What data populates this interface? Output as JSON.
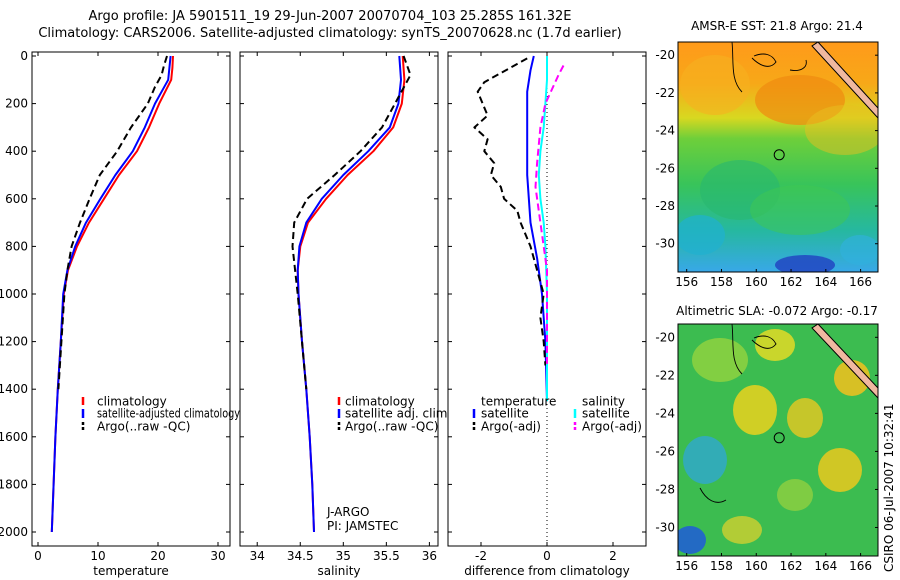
{
  "header": {
    "line1": "Argo profile: JA 5901511_19 29-Jun-2007 20070704_103 25.285S 161.32E",
    "line2": "Climatology: CARS2006. Satellite-adjusted climatology: synTS_20070628.nc (1.7d earlier)"
  },
  "footer_stamp": "CSIRO 06-Jul-2007 10:32:41",
  "colors": {
    "climatology": "#ff0000",
    "satellite": "#0000ff",
    "argo": "#000000",
    "satellite_diff_salinity": "#00ffff",
    "argo_diff_salinity": "#ff00ff",
    "land": "#f0b8a0"
  },
  "chart_data": [
    {
      "id": "temperature",
      "type": "line",
      "xlabel": "temperature",
      "xlim": [
        -1,
        32
      ],
      "xticks": [
        0,
        10,
        20,
        30
      ],
      "ylim": [
        2050,
        0
      ],
      "yticks": [
        0,
        200,
        400,
        600,
        800,
        1000,
        1200,
        1400,
        1600,
        1800,
        2000
      ],
      "legend": [
        "climatology",
        "satellite-adjusted climatology",
        "Argo(..raw -QC)"
      ],
      "series": [
        {
          "name": "climatology",
          "color": "#ff0000",
          "dash": "",
          "points": [
            [
              22.5,
              0
            ],
            [
              22.4,
              50
            ],
            [
              22.2,
              100
            ],
            [
              21.2,
              150
            ],
            [
              20.2,
              200
            ],
            [
              18.5,
              300
            ],
            [
              16.5,
              400
            ],
            [
              13.5,
              500
            ],
            [
              11.0,
              600
            ],
            [
              8.5,
              700
            ],
            [
              6.5,
              800
            ],
            [
              5.0,
              900
            ],
            [
              4.3,
              1000
            ],
            [
              3.8,
              1200
            ],
            [
              3.3,
              1400
            ],
            [
              2.9,
              1600
            ],
            [
              2.6,
              1800
            ],
            [
              2.3,
              2000
            ]
          ]
        },
        {
          "name": "satellite-adjusted climatology",
          "color": "#0000ff",
          "dash": "",
          "points": [
            [
              22.1,
              0
            ],
            [
              21.9,
              50
            ],
            [
              21.7,
              100
            ],
            [
              20.6,
              150
            ],
            [
              19.5,
              200
            ],
            [
              17.8,
              300
            ],
            [
              15.8,
              400
            ],
            [
              12.9,
              500
            ],
            [
              10.4,
              600
            ],
            [
              8.0,
              700
            ],
            [
              6.2,
              800
            ],
            [
              4.9,
              900
            ],
            [
              4.2,
              1000
            ],
            [
              3.8,
              1200
            ],
            [
              3.3,
              1400
            ],
            [
              2.9,
              1600
            ],
            [
              2.6,
              1800
            ],
            [
              2.3,
              2000
            ]
          ]
        },
        {
          "name": "Argo(..raw -QC)",
          "color": "#000000",
          "dash": "7,4",
          "points": [
            [
              21.5,
              0
            ],
            [
              21.0,
              40
            ],
            [
              20.6,
              80
            ],
            [
              19.5,
              130
            ],
            [
              18.3,
              200
            ],
            [
              15.5,
              300
            ],
            [
              13.2,
              400
            ],
            [
              10.3,
              500
            ],
            [
              8.6,
              600
            ],
            [
              7.0,
              700
            ],
            [
              5.6,
              800
            ],
            [
              4.9,
              900
            ],
            [
              4.4,
              1000
            ],
            [
              3.9,
              1200
            ],
            [
              3.4,
              1400
            ]
          ]
        }
      ]
    },
    {
      "id": "salinity",
      "type": "line",
      "xlabel": "salinity",
      "xlim": [
        33.8,
        36.1
      ],
      "xticks": [
        34,
        34.5,
        35,
        35.5,
        36
      ],
      "ylim": [
        2050,
        0
      ],
      "yticks": [
        0,
        200,
        400,
        600,
        800,
        1000,
        1200,
        1400,
        1600,
        1800,
        2000
      ],
      "legend": [
        "climatology",
        "satellite adj. clim.",
        "Argo(..raw -QC)"
      ],
      "annotation": [
        "J-ARGO",
        "PI: JAMSTEC"
      ],
      "series": [
        {
          "name": "climatology",
          "color": "#ff0000",
          "dash": "",
          "points": [
            [
              35.69,
              0
            ],
            [
              35.71,
              100
            ],
            [
              35.68,
              200
            ],
            [
              35.58,
              300
            ],
            [
              35.35,
              400
            ],
            [
              35.05,
              500
            ],
            [
              34.8,
              600
            ],
            [
              34.59,
              700
            ],
            [
              34.5,
              800
            ],
            [
              34.47,
              900
            ],
            [
              34.48,
              1000
            ],
            [
              34.52,
              1200
            ],
            [
              34.57,
              1400
            ],
            [
              34.61,
              1600
            ],
            [
              34.64,
              1800
            ],
            [
              34.66,
              2000
            ]
          ]
        },
        {
          "name": "satellite adj. clim.",
          "color": "#0000ff",
          "dash": "",
          "points": [
            [
              35.65,
              0
            ],
            [
              35.67,
              100
            ],
            [
              35.64,
              200
            ],
            [
              35.54,
              300
            ],
            [
              35.29,
              400
            ],
            [
              35.0,
              500
            ],
            [
              34.75,
              600
            ],
            [
              34.57,
              700
            ],
            [
              34.49,
              800
            ],
            [
              34.47,
              900
            ],
            [
              34.48,
              1000
            ],
            [
              34.52,
              1200
            ],
            [
              34.57,
              1400
            ],
            [
              34.61,
              1600
            ],
            [
              34.64,
              1800
            ],
            [
              34.66,
              2000
            ]
          ]
        },
        {
          "name": "Argo(..raw -QC)",
          "color": "#000000",
          "dash": "7,4",
          "points": [
            [
              35.7,
              0
            ],
            [
              35.78,
              80
            ],
            [
              35.6,
              200
            ],
            [
              35.45,
              300
            ],
            [
              35.2,
              400
            ],
            [
              34.9,
              500
            ],
            [
              34.58,
              600
            ],
            [
              34.43,
              700
            ],
            [
              34.41,
              800
            ],
            [
              34.44,
              900
            ],
            [
              34.47,
              1000
            ],
            [
              34.52,
              1200
            ],
            [
              34.57,
              1400
            ]
          ]
        }
      ]
    },
    {
      "id": "difference",
      "type": "line",
      "xlabel": "difference from climatology",
      "xlim": [
        -3,
        3
      ],
      "xticks": [
        -2,
        0,
        2
      ],
      "ylim": [
        2050,
        0
      ],
      "yticks": [
        0,
        200,
        400,
        600,
        800,
        1000,
        1200,
        1400,
        1600,
        1800,
        2000
      ],
      "legend_headers": [
        "temperature",
        "salinity"
      ],
      "legend": [
        "satellite",
        "Argo(-adj)",
        "satellite",
        "Argo(-adj)"
      ],
      "series": [
        {
          "name": "satellite",
          "group": "temperature",
          "color": "#0000ff",
          "dash": "",
          "points": [
            [
              -0.4,
              0
            ],
            [
              -0.5,
              60
            ],
            [
              -0.6,
              150
            ],
            [
              -0.6,
              300
            ],
            [
              -0.6,
              500
            ],
            [
              -0.5,
              700
            ],
            [
              -0.3,
              850
            ],
            [
              -0.15,
              1000
            ],
            [
              -0.05,
              1200
            ],
            [
              0,
              1450
            ]
          ]
        },
        {
          "name": "Argo(-adj)",
          "group": "temperature",
          "color": "#000000",
          "dash": "7,4",
          "points": [
            [
              -0.6,
              10
            ],
            [
              -1.9,
              110
            ],
            [
              -2.1,
              150
            ],
            [
              -1.8,
              250
            ],
            [
              -2.2,
              300
            ],
            [
              -1.8,
              350
            ],
            [
              -1.9,
              400
            ],
            [
              -1.6,
              450
            ],
            [
              -1.7,
              500
            ],
            [
              -1.4,
              550
            ],
            [
              -1.3,
              600
            ],
            [
              -0.9,
              650
            ],
            [
              -0.8,
              700
            ],
            [
              -0.5,
              800
            ],
            [
              -0.3,
              900
            ],
            [
              -0.1,
              1000
            ],
            [
              -0.2,
              1100
            ],
            [
              -0.1,
              1200
            ],
            [
              -0.05,
              1300
            ]
          ]
        },
        {
          "name": "satellite",
          "group": "salinity",
          "color": "#00ffff",
          "dash": "",
          "points": [
            [
              0,
              0
            ],
            [
              0,
              100
            ],
            [
              -0.05,
              200
            ],
            [
              -0.1,
              300
            ],
            [
              -0.2,
              400
            ],
            [
              -0.25,
              500
            ],
            [
              -0.2,
              600
            ],
            [
              -0.1,
              700
            ],
            [
              -0.05,
              800
            ],
            [
              0,
              1000
            ],
            [
              0,
              1450
            ]
          ]
        },
        {
          "name": "Argo(-adj)",
          "group": "salinity",
          "color": "#ff00ff",
          "dash": "7,4",
          "points": [
            [
              0.5,
              40
            ],
            [
              0.35,
              80
            ],
            [
              -0.05,
              200
            ],
            [
              -0.2,
              300
            ],
            [
              -0.3,
              450
            ],
            [
              -0.35,
              550
            ],
            [
              -0.2,
              700
            ],
            [
              -0.1,
              800
            ],
            [
              0,
              900
            ],
            [
              0,
              1000
            ],
            [
              0,
              1100
            ],
            [
              0,
              1300
            ]
          ]
        }
      ]
    }
  ],
  "maps": [
    {
      "id": "sst",
      "title": "AMSR-E SST: 21.8  Argo: 21.4",
      "xlim": [
        155.5,
        167
      ],
      "ylim": [
        -31.5,
        -19.3
      ],
      "xticks": [
        156,
        158,
        160,
        162,
        164,
        166
      ],
      "yticks": [
        -20,
        -22,
        -24,
        -26,
        -28,
        -30
      ],
      "float_position": [
        161.32,
        -25.285
      ]
    },
    {
      "id": "sla",
      "title": "Altimetric SLA: -0.072  Argo: -0.17",
      "xlim": [
        155.5,
        167
      ],
      "ylim": [
        -31.5,
        -19.3
      ],
      "xticks": [
        156,
        158,
        160,
        162,
        164,
        166
      ],
      "yticks": [
        -20,
        -22,
        -24,
        -26,
        -28,
        -30
      ],
      "float_position": [
        161.32,
        -25.285
      ]
    }
  ]
}
